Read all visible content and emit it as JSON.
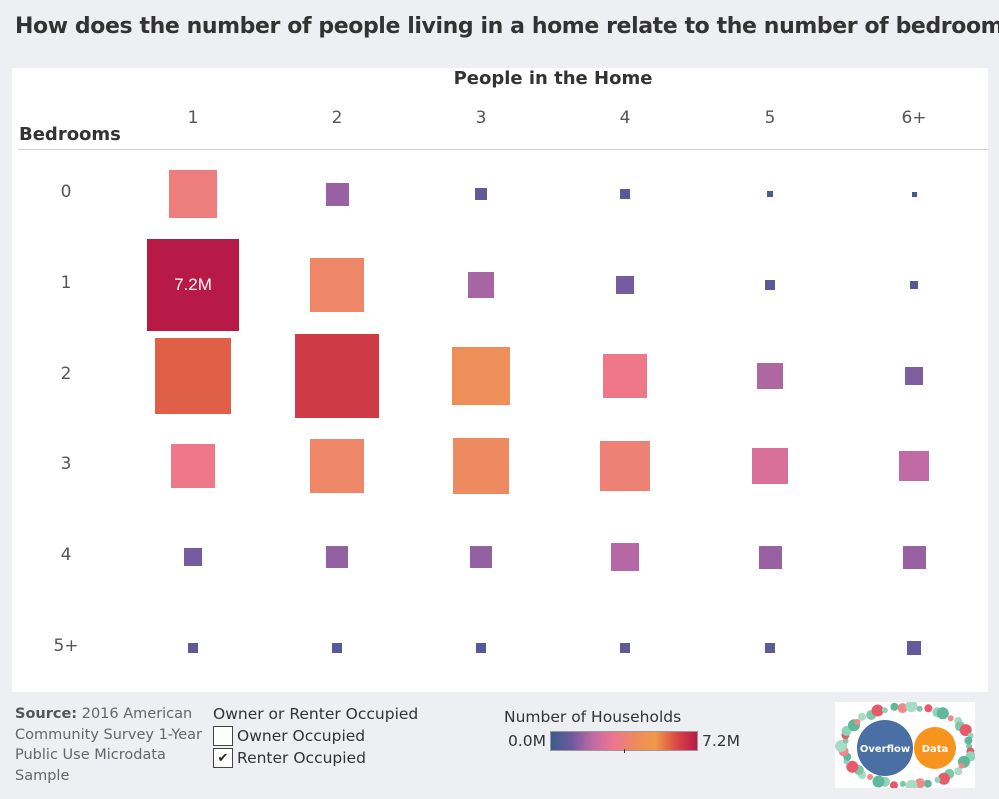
{
  "title": "How does the number of people living in a home relate to the number of bedrooms?",
  "chart_data": {
    "type": "heatmap",
    "xlabel": "People in the Home",
    "ylabel": "Bedrooms",
    "columns": [
      "1",
      "2",
      "3",
      "4",
      "5",
      "6+"
    ],
    "rows": [
      "0",
      "1",
      "2",
      "3",
      "4",
      "5+"
    ],
    "value_unit": "millions of households",
    "values": [
      [
        1.9,
        0.45,
        0.12,
        0.07,
        0.03,
        0.02
      ],
      [
        7.2,
        2.4,
        0.55,
        0.25,
        0.09,
        0.05
      ],
      [
        5.0,
        6.0,
        2.9,
        1.7,
        0.6,
        0.3
      ],
      [
        1.7,
        2.4,
        2.6,
        2.1,
        1.15,
        0.75
      ],
      [
        0.25,
        0.4,
        0.4,
        0.65,
        0.45,
        0.45
      ],
      [
        0.09,
        0.07,
        0.07,
        0.1,
        0.1,
        0.15
      ]
    ],
    "labels": [
      {
        "row": 1,
        "col": 0,
        "text": "7.2M"
      }
    ],
    "color_scale": {
      "title": "Number of Households",
      "min_label": "0.0M",
      "max_label": "7.2M",
      "stops": [
        "#3d5a8c",
        "#6d5a9e",
        "#c06aa5",
        "#ee7590",
        "#ee8a5f",
        "#f09a48",
        "#d94a45",
        "#b81a47"
      ]
    }
  },
  "source": {
    "prefix": "Source:",
    "text": " 2016 American Community Survey 1-Year Public Use Microdata Sample"
  },
  "filter": {
    "title": "Owner or Renter Occupied",
    "items": [
      {
        "label": "Owner Occupied",
        "checked": false
      },
      {
        "label": "Renter Occupied",
        "checked": true
      }
    ]
  },
  "logo": {
    "left_text": "Overflow",
    "right_text": "Data",
    "left_color": "#4a6fa5",
    "right_color": "#f7941d"
  }
}
